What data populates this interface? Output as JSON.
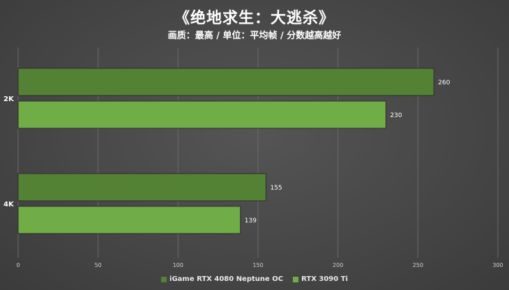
{
  "chart_data": {
    "type": "bar",
    "orientation": "horizontal",
    "title": "《绝地求生：大逃杀》",
    "subtitle": "画质：最高 / 单位：平均帧 / 分数越高越好",
    "categories": [
      "2K",
      "4K"
    ],
    "series": [
      {
        "name": "iGame RTX 4080 Neptune OC",
        "color": "#548235",
        "values": [
          260,
          155
        ]
      },
      {
        "name": "RTX 3090 Ti",
        "color": "#70ad47",
        "values": [
          230,
          139
        ]
      }
    ],
    "xlim": [
      0,
      300
    ],
    "xticks": [
      0,
      50,
      100,
      150,
      200,
      250,
      300
    ],
    "grid": true,
    "legend_position": "bottom"
  }
}
